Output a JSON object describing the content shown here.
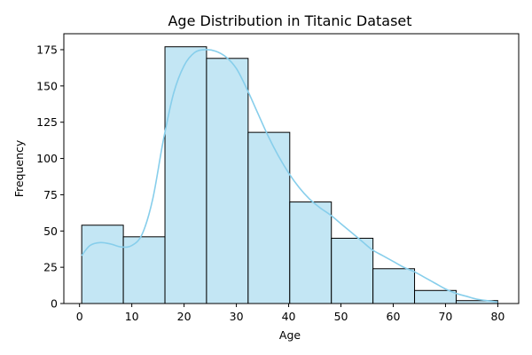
{
  "chart_data": {
    "type": "bar",
    "title": "Age Distribution in Titanic Dataset",
    "xlabel": "Age",
    "ylabel": "Frequency",
    "xlim": [
      -3,
      84
    ],
    "ylim": [
      0,
      186
    ],
    "xticks": [
      0,
      10,
      20,
      30,
      40,
      50,
      60,
      70,
      80
    ],
    "yticks": [
      0,
      25,
      50,
      75,
      100,
      125,
      150,
      175
    ],
    "bins": [
      {
        "x0": 0.42,
        "x1": 8.38,
        "value": 54
      },
      {
        "x0": 8.38,
        "x1": 16.34,
        "value": 46
      },
      {
        "x0": 16.34,
        "x1": 24.29,
        "value": 177
      },
      {
        "x0": 24.29,
        "x1": 32.25,
        "value": 169
      },
      {
        "x0": 32.25,
        "x1": 40.21,
        "value": 118
      },
      {
        "x0": 40.21,
        "x1": 48.17,
        "value": 70
      },
      {
        "x0": 48.17,
        "x1": 56.13,
        "value": 45
      },
      {
        "x0": 56.13,
        "x1": 64.08,
        "value": 24
      },
      {
        "x0": 64.08,
        "x1": 72.04,
        "value": 9
      },
      {
        "x0": 72.04,
        "x1": 80.0,
        "value": 2
      }
    ],
    "kde": {
      "x": [
        0.4,
        2,
        4,
        6,
        8,
        10,
        12,
        14,
        16,
        18,
        20,
        22,
        24,
        26,
        28,
        30,
        32,
        34,
        36,
        38,
        40,
        42,
        44,
        46,
        48,
        50,
        52,
        54,
        56,
        58,
        60,
        62,
        64,
        66,
        68,
        70,
        72,
        74,
        76,
        78,
        80
      ],
      "y": [
        33,
        40,
        42,
        41,
        39,
        40,
        48,
        72,
        112,
        145,
        164,
        173,
        175,
        174,
        170,
        162,
        148,
        132,
        116,
        102,
        90,
        80,
        72,
        66,
        61,
        55,
        49,
        43,
        37,
        33,
        29,
        25,
        22,
        18,
        14,
        10,
        7,
        5,
        3,
        2,
        1
      ]
    },
    "colors": {
      "bar_fill": "#c3e6f4",
      "bar_edge": "#000000",
      "kde_line": "#87ceeb"
    },
    "grid": false,
    "legend": "none"
  }
}
